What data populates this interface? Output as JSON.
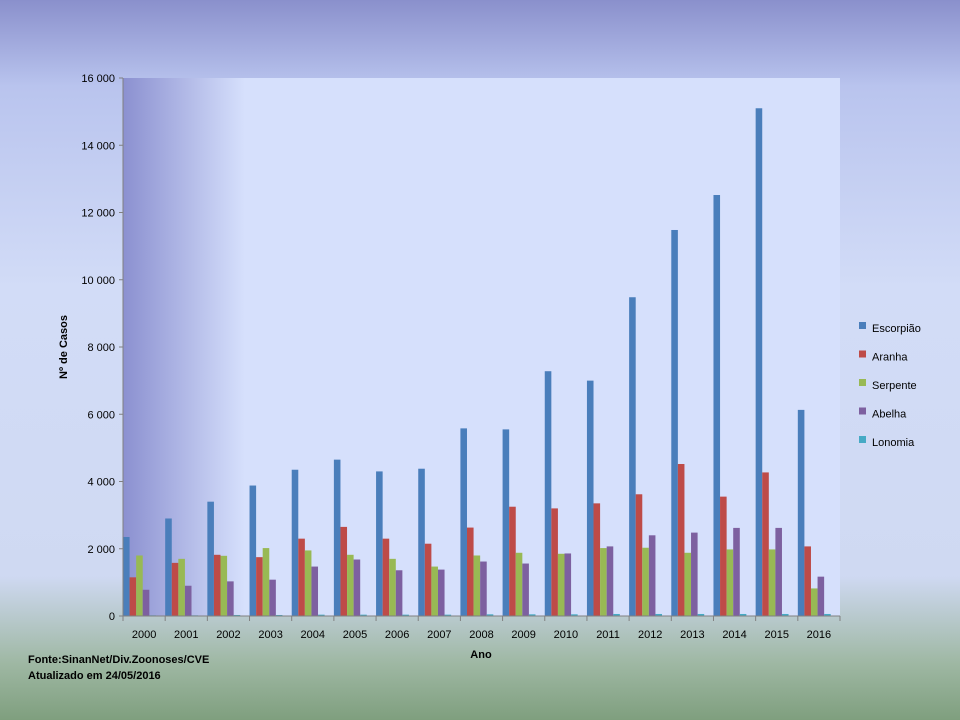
{
  "chart_data": {
    "type": "bar",
    "ylabel": "Nº de Casos",
    "xlabel": "Ano",
    "ylim": [
      0,
      16000
    ],
    "yticks": [
      0,
      2000,
      4000,
      6000,
      8000,
      10000,
      12000,
      14000,
      16000
    ],
    "ytick_labels": [
      "0",
      "2 000",
      "4 000",
      "6 000",
      "8 000",
      "10 000",
      "12 000",
      "14 000",
      "16 000"
    ],
    "categories": [
      "2000",
      "2001",
      "2002",
      "2003",
      "2004",
      "2005",
      "2006",
      "2007",
      "2008",
      "2009",
      "2010",
      "2011",
      "2012",
      "2013",
      "2014",
      "2015",
      "2016"
    ],
    "grid": false,
    "legend_position": "right",
    "series": [
      {
        "name": "Escorpião",
        "color": "#4a7ebb",
        "values": [
          2350,
          2900,
          3400,
          3880,
          4350,
          4650,
          4300,
          4380,
          5580,
          5550,
          7280,
          7000,
          9480,
          11480,
          12520,
          15100,
          6130
        ]
      },
      {
        "name": "Aranha",
        "color": "#be4b48",
        "values": [
          1150,
          1580,
          1820,
          1750,
          2300,
          2650,
          2300,
          2150,
          2630,
          3250,
          3200,
          3350,
          3620,
          4520,
          3550,
          4270,
          2070
        ]
      },
      {
        "name": "Serpente",
        "color": "#98b954",
        "values": [
          1800,
          1700,
          1790,
          2020,
          1950,
          1820,
          1700,
          1470,
          1800,
          1880,
          1850,
          2020,
          2030,
          1880,
          1980,
          1980,
          820
        ]
      },
      {
        "name": "Abelha",
        "color": "#7d60a0",
        "values": [
          780,
          900,
          1030,
          1080,
          1470,
          1680,
          1360,
          1380,
          1620,
          1560,
          1860,
          2070,
          2400,
          2480,
          2620,
          2620,
          1170
        ]
      },
      {
        "name": "Lonomia",
        "color": "#46aac5",
        "values": [
          20,
          20,
          30,
          30,
          40,
          40,
          40,
          40,
          50,
          50,
          50,
          60,
          60,
          60,
          60,
          60,
          60
        ]
      }
    ]
  },
  "footer": {
    "source": "Fonte:SinanNet/Div.Zoonoses/CVE",
    "updated": "Atualizado  em 24/05/2016"
  }
}
